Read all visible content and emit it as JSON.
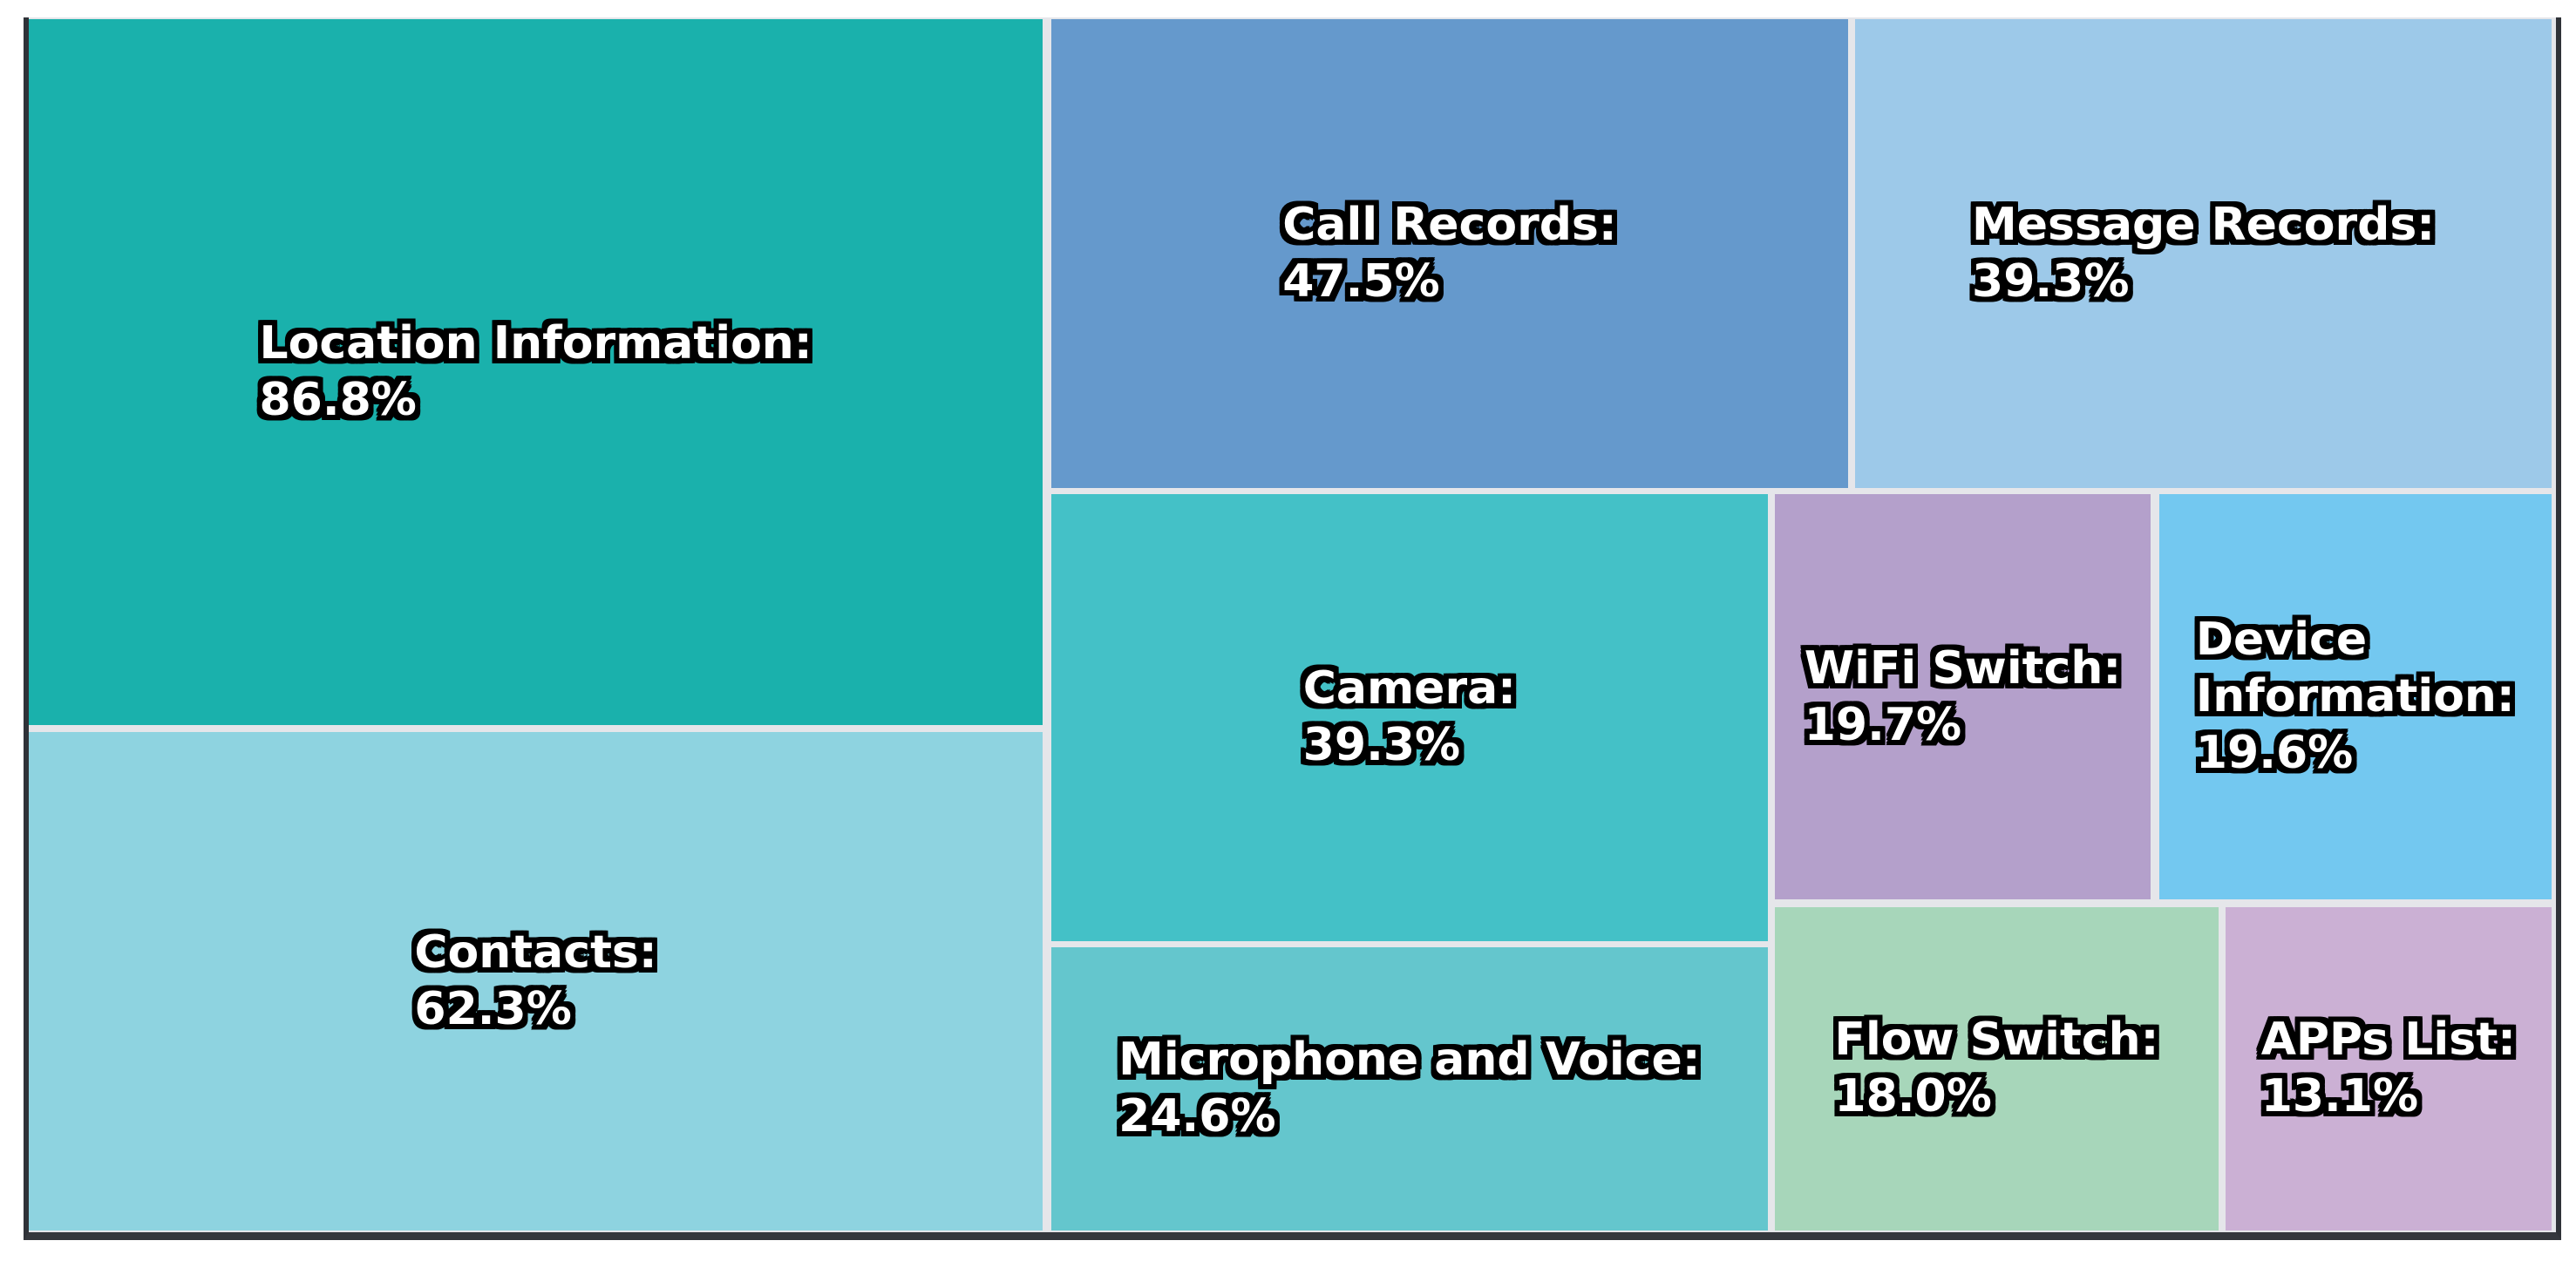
{
  "figure": {
    "background": "#ffffff",
    "plot_background": "#e5e6ea",
    "spine_color": "#2f3238",
    "text_color": "#ffffff",
    "text_outline_color": "#000000"
  },
  "chart_data": {
    "type": "treemap",
    "title": "",
    "legend": "none",
    "grid": false,
    "unit": "%",
    "categories": [
      "Location Information",
      "Contacts",
      "Call Records",
      "Message Records",
      "Camera",
      "WiFi Switch",
      "Device Information",
      "Microphone and Voice",
      "Flow Switch",
      "APPs List"
    ],
    "values": [
      86.8,
      62.3,
      47.5,
      39.3,
      39.3,
      19.7,
      19.6,
      24.6,
      18.0,
      13.1
    ],
    "items": [
      {
        "label": "Location Information",
        "value": 86.8,
        "display": "Location Information:\n86.8%",
        "color": "#1ab1ac",
        "rect": {
          "x": 0.0,
          "y": 0.14,
          "w": 40.12,
          "h": 58.11
        }
      },
      {
        "label": "Contacts",
        "value": 62.3,
        "display": "Contacts:\n62.3%",
        "color": "#8ed3e0",
        "rect": {
          "x": 0.0,
          "y": 58.82,
          "w": 40.12,
          "h": 41.03
        }
      },
      {
        "label": "Call Records",
        "value": 47.5,
        "display": "Call Records:\n47.5%",
        "color": "#6599cc",
        "rect": {
          "x": 40.46,
          "y": 0.14,
          "w": 31.53,
          "h": 38.59
        }
      },
      {
        "label": "Message Records",
        "value": 39.3,
        "display": "Message Records:\n39.3%",
        "color": "#9dc9e9",
        "rect": {
          "x": 72.27,
          "y": 0.14,
          "w": 27.56,
          "h": 38.59
        }
      },
      {
        "label": "Camera",
        "value": 39.3,
        "display": "Camera:\n39.3%",
        "color": "#44c1c7",
        "rect": {
          "x": 40.46,
          "y": 39.24,
          "w": 28.35,
          "h": 36.8
        }
      },
      {
        "label": "WiFi Switch",
        "value": 19.7,
        "display": "WiFi Switch:\n19.7%",
        "color": "#b4a0cb",
        "rect": {
          "x": 69.09,
          "y": 39.24,
          "w": 14.87,
          "h": 33.36
        }
      },
      {
        "label": "Device Information",
        "value": 19.6,
        "display": "Device\nInformation:\n19.6%",
        "color": "#73c8f0",
        "rect": {
          "x": 84.3,
          "y": 39.24,
          "w": 15.52,
          "h": 33.36
        }
      },
      {
        "label": "Microphone and Voice",
        "value": 24.6,
        "display": "Microphone and Voice:\n24.6%",
        "color": "#64c6cd",
        "rect": {
          "x": 40.46,
          "y": 76.54,
          "w": 28.35,
          "h": 23.31
        }
      },
      {
        "label": "Flow Switch",
        "value": 18.0,
        "display": "Flow Switch:\n18.0%",
        "color": "#a7d6ba",
        "rect": {
          "x": 69.09,
          "y": 73.24,
          "w": 17.56,
          "h": 26.61
        }
      },
      {
        "label": "APPs List",
        "value": 13.1,
        "display": "APPs List:\n13.1%",
        "color": "#cbb0d4",
        "rect": {
          "x": 86.92,
          "y": 73.24,
          "w": 12.9,
          "h": 26.61
        }
      }
    ]
  }
}
